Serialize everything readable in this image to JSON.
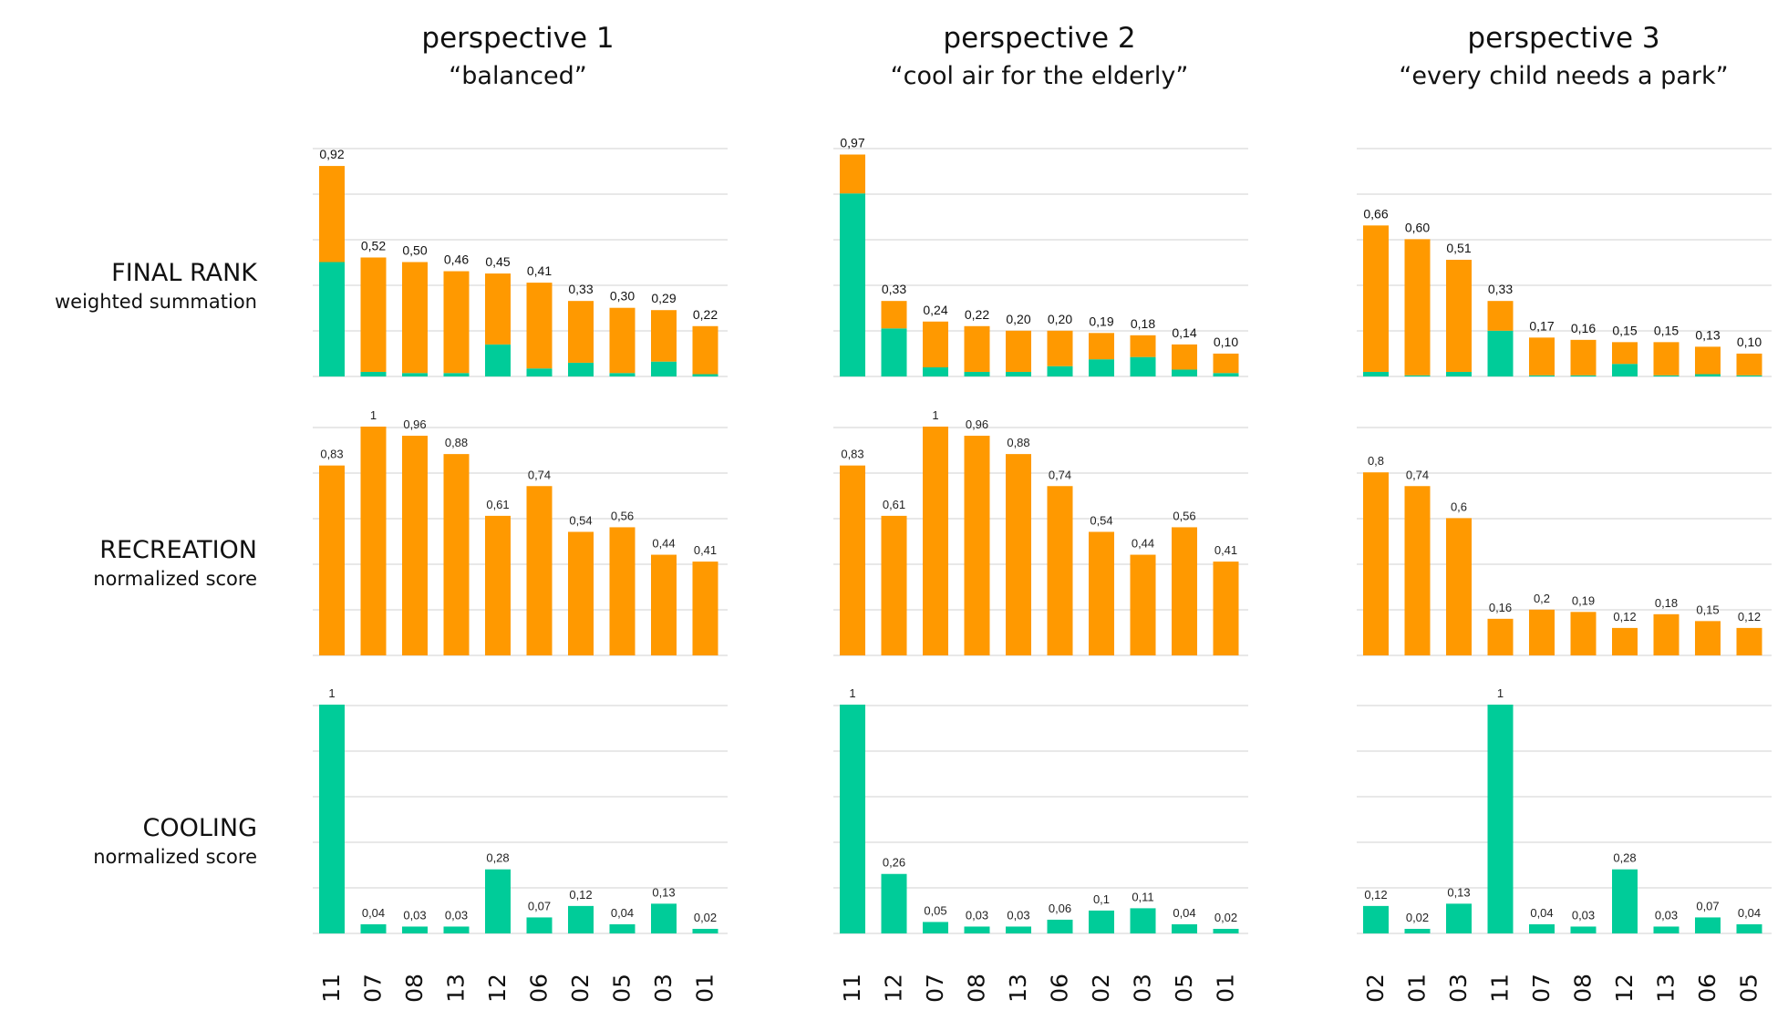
{
  "colors": {
    "recreation": "#FF9900",
    "cooling": "#00CC99",
    "grid": "#d9d9d9",
    "text": "#111111"
  },
  "row_labels": [
    {
      "title": "FINAL RANK",
      "subtitle": "weighted summation"
    },
    {
      "title": "RECREATION",
      "subtitle": "normalized score"
    },
    {
      "title": "COOLING",
      "subtitle": "normalized score"
    }
  ],
  "perspectives": [
    {
      "title": "perspective 1",
      "subtitle": "“balanced”"
    },
    {
      "title": "perspective 2",
      "subtitle": "“cool air for the elderly”"
    },
    {
      "title": "perspective 3",
      "subtitle": "“every child needs a park”"
    }
  ],
  "chart_data": [
    {
      "type": "bar",
      "stacked": true,
      "perspective": 0,
      "row": 0,
      "categories": [
        "11",
        "07",
        "08",
        "13",
        "12",
        "06",
        "02",
        "05",
        "03",
        "01"
      ],
      "series": [
        {
          "values": [
            0.5,
            0.02,
            0.015,
            0.015,
            0.14,
            0.035,
            0.06,
            0.015,
            0.065,
            0.01
          ]
        },
        {
          "values": [
            0.42,
            0.5,
            0.485,
            0.445,
            0.31,
            0.375,
            0.27,
            0.285,
            0.225,
            0.21
          ]
        }
      ],
      "labels": [
        "0,92",
        "0,52",
        "0,50",
        "0,46",
        "0,45",
        "0,41",
        "0,33",
        "0,30",
        "0,29",
        "0,22"
      ],
      "ylim": [
        0,
        1.0
      ],
      "grid": true
    },
    {
      "type": "bar",
      "perspective": 0,
      "row": 1,
      "categories": [
        "11",
        "07",
        "08",
        "13",
        "12",
        "06",
        "02",
        "05",
        "03",
        "01"
      ],
      "series": [
        {
          "values": [
            0.83,
            1,
            0.96,
            0.88,
            0.61,
            0.74,
            0.54,
            0.56,
            0.44,
            0.41
          ]
        }
      ],
      "labels": [
        "0,83",
        "1",
        "0,96",
        "0,88",
        "0,61",
        "0,74",
        "0,54",
        "0,56",
        "0,44",
        "0,41"
      ],
      "ylim": [
        0,
        1.0
      ],
      "grid": true
    },
    {
      "type": "bar",
      "perspective": 0,
      "row": 2,
      "categories": [
        "11",
        "07",
        "08",
        "13",
        "12",
        "06",
        "02",
        "05",
        "03",
        "01"
      ],
      "series": [
        {
          "values": [
            1,
            0.04,
            0.03,
            0.03,
            0.28,
            0.07,
            0.12,
            0.04,
            0.13,
            0.02
          ]
        }
      ],
      "labels": [
        "1",
        "0,04",
        "0,03",
        "0,03",
        "0,28",
        "0,07",
        "0,12",
        "0,04",
        "0,13",
        "0,02"
      ],
      "ylim": [
        0,
        1.0
      ],
      "grid": true
    },
    {
      "type": "bar",
      "stacked": true,
      "perspective": 1,
      "row": 0,
      "categories": [
        "11",
        "12",
        "07",
        "08",
        "13",
        "06",
        "02",
        "03",
        "05",
        "01"
      ],
      "series": [
        {
          "values": [
            0.8,
            0.21,
            0.04,
            0.02,
            0.02,
            0.045,
            0.075,
            0.085,
            0.03,
            0.015
          ]
        },
        {
          "values": [
            0.17,
            0.12,
            0.2,
            0.2,
            0.18,
            0.155,
            0.115,
            0.095,
            0.11,
            0.085
          ]
        }
      ],
      "labels": [
        "0,97",
        "0,33",
        "0,24",
        "0,22",
        "0,20",
        "0,20",
        "0,19",
        "0,18",
        "0,14",
        "0,10"
      ],
      "ylim": [
        0,
        1.0
      ],
      "grid": true
    },
    {
      "type": "bar",
      "perspective": 1,
      "row": 1,
      "categories": [
        "11",
        "12",
        "07",
        "08",
        "13",
        "06",
        "02",
        "03",
        "05",
        "01"
      ],
      "series": [
        {
          "values": [
            0.83,
            0.61,
            1,
            0.96,
            0.88,
            0.74,
            0.54,
            0.44,
            0.56,
            0.41
          ]
        }
      ],
      "labels": [
        "0,83",
        "0,61",
        "1",
        "0,96",
        "0,88",
        "0,74",
        "0,54",
        "0,44",
        "0,56",
        "0,41"
      ],
      "ylim": [
        0,
        1.0
      ],
      "grid": true
    },
    {
      "type": "bar",
      "perspective": 1,
      "row": 2,
      "categories": [
        "11",
        "12",
        "07",
        "08",
        "13",
        "06",
        "02",
        "03",
        "05",
        "01"
      ],
      "series": [
        {
          "values": [
            1,
            0.26,
            0.05,
            0.03,
            0.03,
            0.06,
            0.1,
            0.11,
            0.04,
            0.02
          ]
        }
      ],
      "labels": [
        "1",
        "0,26",
        "0,05",
        "0,03",
        "0,03",
        "0,06",
        "0,1",
        "0,11",
        "0,04",
        "0,02"
      ],
      "ylim": [
        0,
        1.0
      ],
      "grid": true
    },
    {
      "type": "bar",
      "stacked": true,
      "perspective": 2,
      "row": 0,
      "categories": [
        "02",
        "01",
        "03",
        "11",
        "07",
        "08",
        "12",
        "13",
        "06",
        "05"
      ],
      "series": [
        {
          "values": [
            0.02,
            0.005,
            0.02,
            0.2,
            0.005,
            0.005,
            0.055,
            0.005,
            0.01,
            0.005
          ]
        },
        {
          "values": [
            0.64,
            0.595,
            0.49,
            0.13,
            0.165,
            0.155,
            0.095,
            0.145,
            0.12,
            0.095
          ]
        }
      ],
      "labels": [
        "0,66",
        "0,60",
        "0,51",
        "0,33",
        "0,17",
        "0,16",
        "0,15",
        "0,15",
        "0,13",
        "0,10"
      ],
      "ylim": [
        0,
        1.0
      ],
      "grid": true
    },
    {
      "type": "bar",
      "perspective": 2,
      "row": 1,
      "categories": [
        "02",
        "01",
        "03",
        "11",
        "07",
        "08",
        "12",
        "13",
        "06",
        "05"
      ],
      "series": [
        {
          "values": [
            0.8,
            0.74,
            0.6,
            0.16,
            0.2,
            0.19,
            0.12,
            0.18,
            0.15,
            0.12
          ]
        }
      ],
      "labels": [
        "0,8",
        "0,74",
        "0,6",
        "0,16",
        "0,2",
        "0,19",
        "0,12",
        "0,18",
        "0,15",
        "0,12"
      ],
      "ylim": [
        0,
        1.0
      ],
      "grid": true
    },
    {
      "type": "bar",
      "perspective": 2,
      "row": 2,
      "categories": [
        "02",
        "01",
        "03",
        "11",
        "07",
        "08",
        "12",
        "13",
        "06",
        "05"
      ],
      "series": [
        {
          "values": [
            0.12,
            0.02,
            0.13,
            1,
            0.04,
            0.03,
            0.28,
            0.03,
            0.07,
            0.04
          ]
        }
      ],
      "labels": [
        "0,12",
        "0,02",
        "0,13",
        "1",
        "0,04",
        "0,03",
        "0,28",
        "0,03",
        "0,07",
        "0,04"
      ],
      "ylim": [
        0,
        1.0
      ],
      "grid": true
    }
  ]
}
